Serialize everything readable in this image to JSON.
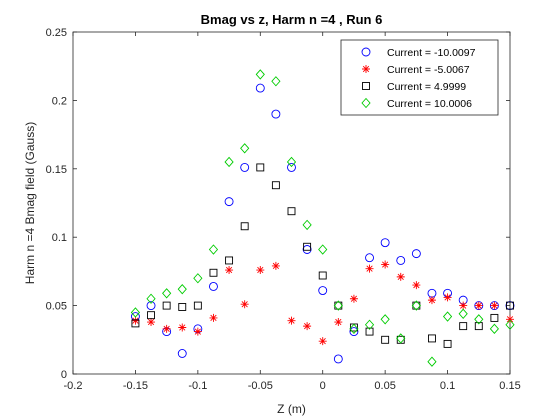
{
  "chart_data": {
    "type": "scatter",
    "title": "Bmag vs z, Harm n =4 , Run 6",
    "xlabel": "Z (m)",
    "ylabel": "Harm n =4 Bmag field (Gauss)",
    "xlim": [
      -0.2,
      0.15
    ],
    "ylim": [
      0,
      0.25
    ],
    "x_ticks": [
      "-0.2",
      "-0.15",
      "-0.1",
      "-0.05",
      "0",
      "0.05",
      "0.1",
      "0.15"
    ],
    "y_ticks": [
      "0",
      "0.05",
      "0.1",
      "0.15",
      "0.2",
      "0.25"
    ],
    "grid": false,
    "legend_position": "top-right",
    "series": [
      {
        "name": "Current = -10.0097",
        "marker": "circle",
        "color": "#0000ff",
        "points": [
          [
            -0.15,
            0.042
          ],
          [
            -0.1375,
            0.05
          ],
          [
            -0.125,
            0.031
          ],
          [
            -0.1125,
            0.015
          ],
          [
            -0.1,
            0.033
          ],
          [
            -0.0875,
            0.064
          ],
          [
            -0.075,
            0.126
          ],
          [
            -0.0625,
            0.151
          ],
          [
            -0.05,
            0.209
          ],
          [
            -0.0375,
            0.19
          ],
          [
            -0.025,
            0.151
          ],
          [
            -0.0125,
            0.091
          ],
          [
            0.0,
            0.061
          ],
          [
            0.0125,
            0.011
          ],
          [
            0.025,
            0.031
          ],
          [
            0.0375,
            0.085
          ],
          [
            0.05,
            0.096
          ],
          [
            0.0625,
            0.083
          ],
          [
            0.075,
            0.088
          ],
          [
            0.0875,
            0.059
          ],
          [
            0.1,
            0.059
          ],
          [
            0.1125,
            0.054
          ],
          [
            0.125,
            0.05
          ],
          [
            0.1375,
            0.05
          ],
          [
            0.15,
            0.05
          ]
        ]
      },
      {
        "name": "Current = -5.0067",
        "marker": "star",
        "color": "#ff0000",
        "points": [
          [
            -0.15,
            0.039
          ],
          [
            -0.1375,
            0.038
          ],
          [
            -0.125,
            0.033
          ],
          [
            -0.1125,
            0.034
          ],
          [
            -0.1,
            0.031
          ],
          [
            -0.0875,
            0.041
          ],
          [
            -0.075,
            0.076
          ],
          [
            -0.0625,
            0.051
          ],
          [
            -0.05,
            0.076
          ],
          [
            -0.0375,
            0.079
          ],
          [
            -0.025,
            0.039
          ],
          [
            -0.0125,
            0.035
          ],
          [
            0.0,
            0.024
          ],
          [
            0.0125,
            0.038
          ],
          [
            0.025,
            0.055
          ],
          [
            0.0375,
            0.077
          ],
          [
            0.05,
            0.08
          ],
          [
            0.0625,
            0.071
          ],
          [
            0.075,
            0.065
          ],
          [
            0.0875,
            0.054
          ],
          [
            0.1,
            0.056
          ],
          [
            0.1125,
            0.05
          ],
          [
            0.125,
            0.05
          ],
          [
            0.1375,
            0.05
          ],
          [
            0.15,
            0.04
          ]
        ]
      },
      {
        "name": "Current = 4.9999",
        "marker": "square",
        "color": "#000000",
        "points": [
          [
            -0.15,
            0.037
          ],
          [
            -0.1375,
            0.043
          ],
          [
            -0.125,
            0.05
          ],
          [
            -0.1125,
            0.049
          ],
          [
            -0.1,
            0.05
          ],
          [
            -0.0875,
            0.074
          ],
          [
            -0.075,
            0.083
          ],
          [
            -0.0625,
            0.108
          ],
          [
            -0.05,
            0.151
          ],
          [
            -0.0375,
            0.138
          ],
          [
            -0.025,
            0.119
          ],
          [
            -0.0125,
            0.093
          ],
          [
            0.0,
            0.072
          ],
          [
            0.0125,
            0.05
          ],
          [
            0.025,
            0.034
          ],
          [
            0.0375,
            0.031
          ],
          [
            0.05,
            0.025
          ],
          [
            0.0625,
            0.025
          ],
          [
            0.075,
            0.05
          ],
          [
            0.0875,
            0.026
          ],
          [
            0.1,
            0.022
          ],
          [
            0.1125,
            0.035
          ],
          [
            0.125,
            0.035
          ],
          [
            0.1375,
            0.041
          ],
          [
            0.15,
            0.05
          ]
        ]
      },
      {
        "name": "Current = 10.0006",
        "marker": "diamond",
        "color": "#00cc00",
        "points": [
          [
            -0.15,
            0.045
          ],
          [
            -0.1375,
            0.055
          ],
          [
            -0.125,
            0.059
          ],
          [
            -0.1125,
            0.062
          ],
          [
            -0.1,
            0.07
          ],
          [
            -0.0875,
            0.091
          ],
          [
            -0.075,
            0.155
          ],
          [
            -0.0625,
            0.165
          ],
          [
            -0.05,
            0.219
          ],
          [
            -0.0375,
            0.214
          ],
          [
            -0.025,
            0.155
          ],
          [
            -0.0125,
            0.109
          ],
          [
            0.0,
            0.091
          ],
          [
            0.0125,
            0.05
          ],
          [
            0.025,
            0.033
          ],
          [
            0.0375,
            0.036
          ],
          [
            0.05,
            0.04
          ],
          [
            0.0625,
            0.026
          ],
          [
            0.075,
            0.05
          ],
          [
            0.0875,
            0.009
          ],
          [
            0.1,
            0.042
          ],
          [
            0.1125,
            0.044
          ],
          [
            0.125,
            0.04
          ],
          [
            0.1375,
            0.033
          ],
          [
            0.15,
            0.036
          ]
        ]
      }
    ]
  }
}
